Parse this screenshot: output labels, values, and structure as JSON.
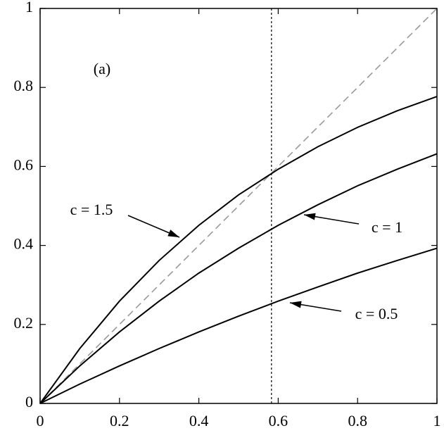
{
  "chart_data": {
    "type": "line",
    "annotation": "(a)",
    "x": [
      0,
      0.1,
      0.2,
      0.3,
      0.4,
      0.5,
      0.6,
      0.7,
      0.8,
      0.9,
      1
    ],
    "series": [
      {
        "name": "c = 1.5",
        "color": "#000000",
        "values": [
          0,
          0.139,
          0.259,
          0.362,
          0.451,
          0.528,
          0.593,
          0.65,
          0.699,
          0.741,
          0.777
        ]
      },
      {
        "name": "c = 1",
        "color": "#000000",
        "values": [
          0,
          0.095,
          0.181,
          0.259,
          0.33,
          0.393,
          0.451,
          0.503,
          0.551,
          0.593,
          0.632
        ]
      },
      {
        "name": "c = 0.5",
        "color": "#000000",
        "values": [
          0,
          0.049,
          0.095,
          0.139,
          0.181,
          0.221,
          0.259,
          0.295,
          0.33,
          0.362,
          0.393
        ]
      }
    ],
    "diagonal": {
      "x": [
        0,
        1
      ],
      "values": [
        0,
        1
      ],
      "color": "#999999"
    },
    "vline": 0.583,
    "xlim": [
      0,
      1
    ],
    "ylim": [
      0,
      1
    ],
    "xticks": [
      0,
      0.2,
      0.4,
      0.6,
      0.8,
      1
    ],
    "yticks": [
      0,
      0.2,
      0.4,
      0.6,
      0.8,
      1
    ]
  }
}
